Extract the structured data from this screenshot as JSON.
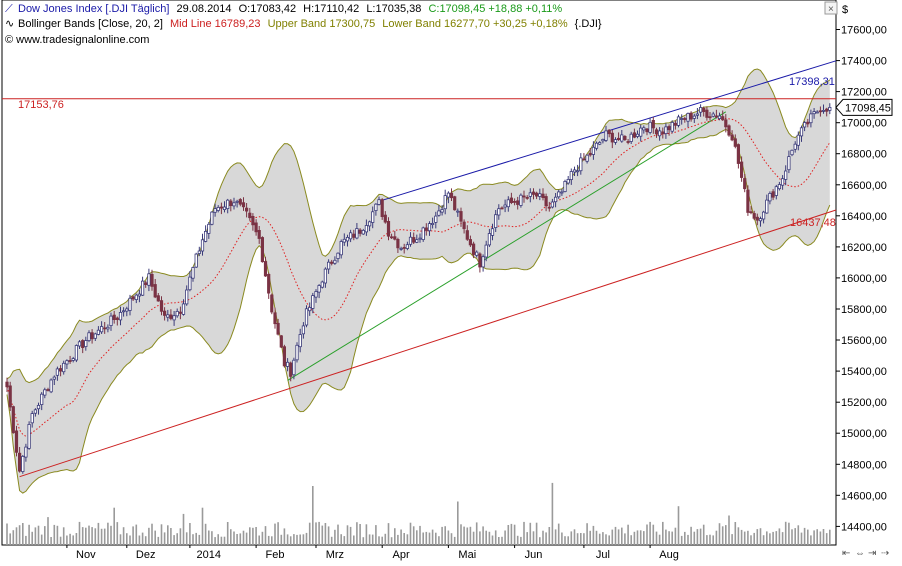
{
  "header": {
    "line1": {
      "instrument": "Dow Jones Index [.DJI Täglich]",
      "date": "29.08.2014",
      "open": "O:17083,42",
      "high": "H:17110,42",
      "low": "L:17035,38",
      "close_change": "C:17098,45 +18,88 +0,11%"
    },
    "line2": {
      "indicator": "Bollinger Bands [Close, 20, 2]",
      "mid": "Mid Line 16789,23",
      "upper": "Upper Band 17300,75",
      "lower": "Lower Band 16277,70 +30,25 +0,18%",
      "symbol": "{.DJI}"
    },
    "line3": "© www.tradesignalonline.com"
  },
  "currency_symbol": "$",
  "colors": {
    "candle_up": "#3b3b7a",
    "candle_down": "#7a3344",
    "band_fill": "#d8d8d8",
    "band_line": "#8a8a20",
    "mid_line": "#e02020",
    "support_line": "#cc2222",
    "resistance_line": "#1a1aa8",
    "trend_green": "#2aa02a",
    "volume": "#9a9a9a",
    "axis_text": "#000000",
    "header_blue": "#1a1aa8",
    "header_red": "#cc2020",
    "header_olive": "#808000",
    "header_green": "#1a9a1a"
  },
  "chart_data": {
    "type": "candlestick",
    "title": "Dow Jones Index [.DJI Täglich]",
    "x_labels": [
      "Nov",
      "Dez",
      "2014",
      "Feb",
      "Mrz",
      "Apr",
      "Mai",
      "Jun",
      "Jul",
      "Aug"
    ],
    "y_ticks": [
      "17600,00",
      "17400,00",
      "17200,00",
      "17000,00",
      "16800,00",
      "16600,00",
      "16400,00",
      "16200,00",
      "16000,00",
      "15800,00",
      "15600,00",
      "15400,00",
      "15200,00",
      "15000,00",
      "14800,00",
      "14600,00",
      "14400,00"
    ],
    "y_range": [
      14280,
      17790
    ],
    "last_price": "17098,45",
    "last_price_value": 17098.45,
    "horizontal_line": {
      "label": "17153,76",
      "value": 17153.76
    },
    "support_line": {
      "label": "16437,48",
      "value_at_end": 16437.48
    },
    "resistance_line": {
      "label": "17398,31",
      "value_at_end": 17398.31
    },
    "series_anchors": {
      "close": [
        [
          0,
          15300
        ],
        [
          4,
          14760
        ],
        [
          8,
          15120
        ],
        [
          15,
          15380
        ],
        [
          25,
          15600
        ],
        [
          35,
          15750
        ],
        [
          45,
          16000
        ],
        [
          50,
          15740
        ],
        [
          55,
          15800
        ],
        [
          62,
          16250
        ],
        [
          66,
          16450
        ],
        [
          72,
          16500
        ],
        [
          76,
          16400
        ],
        [
          80,
          16250
        ],
        [
          84,
          15800
        ],
        [
          88,
          15450
        ],
        [
          90,
          15400
        ],
        [
          94,
          15720
        ],
        [
          100,
          16000
        ],
        [
          106,
          16220
        ],
        [
          112,
          16310
        ],
        [
          118,
          16480
        ],
        [
          121,
          16300
        ],
        [
          125,
          16200
        ],
        [
          130,
          16270
        ],
        [
          136,
          16400
        ],
        [
          140,
          16550
        ],
        [
          144,
          16350
        ],
        [
          148,
          16180
        ],
        [
          150,
          16100
        ],
        [
          153,
          16300
        ],
        [
          156,
          16450
        ],
        [
          162,
          16500
        ],
        [
          168,
          16530
        ],
        [
          172,
          16450
        ],
        [
          176,
          16550
        ],
        [
          180,
          16700
        ],
        [
          185,
          16800
        ],
        [
          190,
          16920
        ],
        [
          196,
          16880
        ],
        [
          202,
          16980
        ],
        [
          208,
          16950
        ],
        [
          214,
          17020
        ],
        [
          220,
          17070
        ],
        [
          226,
          17050
        ],
        [
          230,
          16920
        ],
        [
          232,
          16740
        ],
        [
          235,
          16450
        ],
        [
          238,
          16380
        ],
        [
          242,
          16520
        ],
        [
          246,
          16650
        ],
        [
          250,
          16880
        ],
        [
          254,
          17000
        ],
        [
          258,
          17100
        ],
        [
          261,
          17098
        ]
      ]
    },
    "volume_bars": {
      "normal_range": [
        14330,
        14430
      ],
      "spikes": [
        [
          13,
          14460
        ],
        [
          34,
          14520
        ],
        [
          56,
          14480
        ],
        [
          62,
          14520
        ],
        [
          97,
          14660
        ],
        [
          143,
          14560
        ],
        [
          173,
          14680
        ],
        [
          213,
          14530
        ],
        [
          229,
          14470
        ]
      ]
    },
    "bollinger": {
      "period": 20,
      "std_dev": 2,
      "mid_last": 16789.23,
      "upper_last": 17300.75,
      "lower_last": 16277.7
    }
  }
}
